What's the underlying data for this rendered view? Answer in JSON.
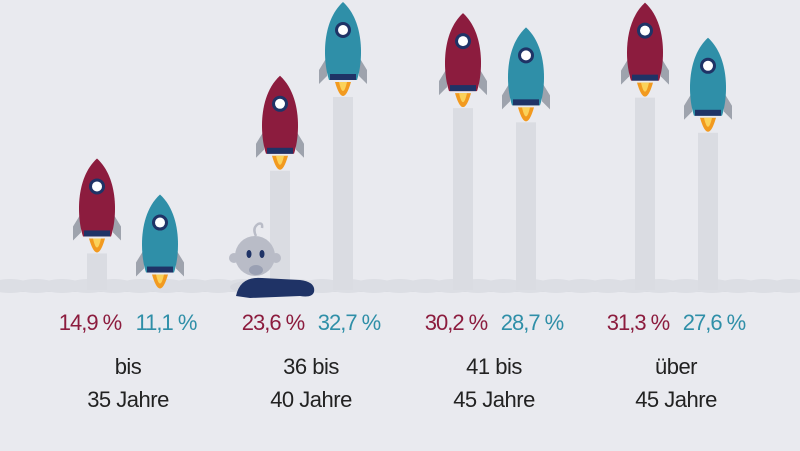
{
  "chart_data": {
    "type": "bar",
    "title": "",
    "xlabel": "",
    "ylabel": "",
    "categories": [
      {
        "line1": "bis",
        "line2": "35 Jahre"
      },
      {
        "line1": "36 bis",
        "line2": "40 Jahre"
      },
      {
        "line1": "41 bis",
        "line2": "45 Jahre"
      },
      {
        "line1": "über",
        "line2": "45 Jahre"
      }
    ],
    "series": [
      {
        "name": "red",
        "color": "#8c1c3e",
        "values": [
          14.9,
          23.6,
          30.2,
          31.3
        ],
        "labels": [
          "14,9 %",
          "23,6 %",
          "30,2 %",
          "31,3 %"
        ]
      },
      {
        "name": "teal",
        "color": "#2f8fa8",
        "values": [
          11.1,
          32.7,
          28.7,
          27.6
        ],
        "labels": [
          "11,1 %",
          "32,7 %",
          "28,7 %",
          "27,6 %"
        ]
      }
    ],
    "ylim": [
      0,
      35
    ]
  }
}
